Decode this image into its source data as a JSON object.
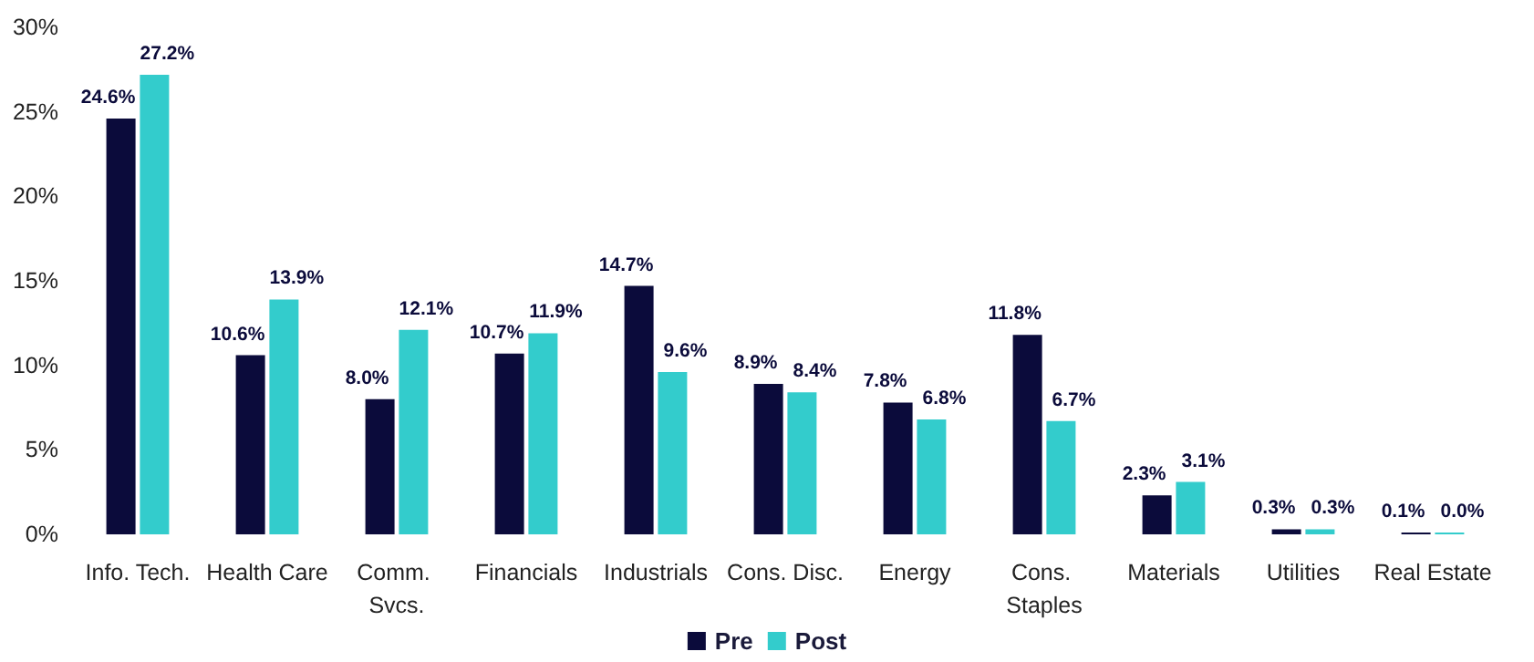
{
  "chart_data": {
    "type": "bar",
    "categories": [
      "Info. Tech.",
      "Health Care",
      "Comm. Svcs.",
      "Financials",
      "Industrials",
      "Cons. Disc.",
      "Energy",
      "Cons. Staples",
      "Materials",
      "Utilities",
      "Real Estate"
    ],
    "series": [
      {
        "name": "Pre",
        "color": "#0b0b3b",
        "values": [
          24.6,
          10.6,
          8.0,
          10.7,
          14.7,
          8.9,
          7.8,
          11.8,
          2.3,
          0.3,
          0.1
        ],
        "value_labels": [
          "24.6%",
          "10.6%",
          "8.0%",
          "10.7%",
          "14.7%",
          "8.9%",
          "7.8%",
          "11.8%",
          "2.3%",
          "0.3%",
          "0.1%"
        ]
      },
      {
        "name": "Post",
        "color": "#33cccc",
        "values": [
          27.2,
          13.9,
          12.1,
          11.9,
          9.6,
          8.4,
          6.8,
          6.7,
          3.1,
          0.3,
          0.0
        ],
        "value_labels": [
          "27.2%",
          "13.9%",
          "12.1%",
          "11.9%",
          "9.6%",
          "8.4%",
          "6.8%",
          "6.7%",
          "3.1%",
          "0.3%",
          "0.0%"
        ]
      }
    ],
    "ylim": [
      0,
      30
    ],
    "yticks": [
      {
        "value": 0,
        "label": "0%"
      },
      {
        "value": 5,
        "label": "5%"
      },
      {
        "value": 10,
        "label": "10%"
      },
      {
        "value": 15,
        "label": "15%"
      },
      {
        "value": 20,
        "label": "20%"
      },
      {
        "value": 25,
        "label": "25%"
      },
      {
        "value": 30,
        "label": "30%"
      }
    ],
    "grid": false,
    "legend": "bottom"
  }
}
